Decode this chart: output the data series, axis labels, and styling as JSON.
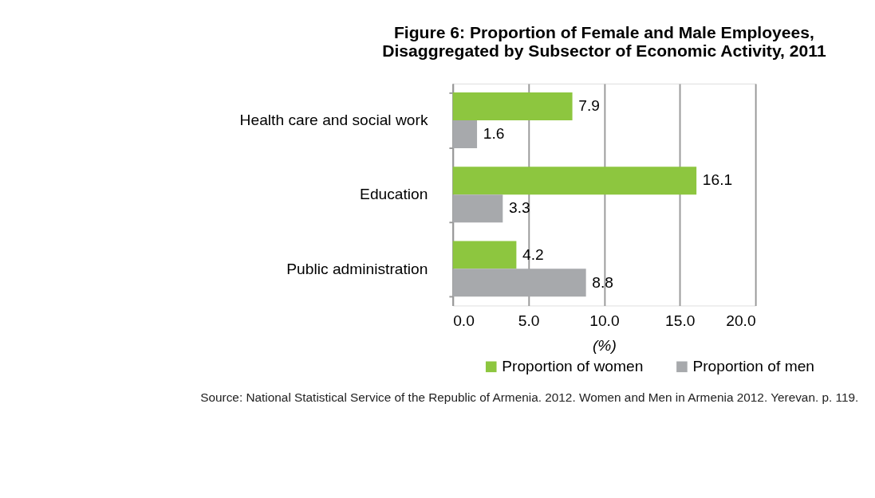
{
  "chart_data": {
    "type": "bar",
    "orientation": "horizontal",
    "title": "Figure 6:    Proportion of Female and Male Employees, Disaggregated by Subsector of Economic Activity, 2011",
    "categories": [
      "Health care and social work",
      "Education",
      "Public administration"
    ],
    "series": [
      {
        "name": "Proportion of women",
        "color": "#8dc63f",
        "values": [
          7.9,
          16.1,
          4.2
        ]
      },
      {
        "name": "Proportion of men",
        "color": "#a7a9ac",
        "values": [
          1.6,
          3.3,
          8.8
        ]
      }
    ],
    "xlabel": "(%)",
    "xlim": [
      0,
      20
    ],
    "xticks": [
      {
        "value": 0,
        "label": "0.0"
      },
      {
        "value": 5,
        "label": "5.0"
      },
      {
        "value": 10,
        "label": "10.0"
      },
      {
        "value": 15,
        "label": "15.0"
      },
      {
        "value": 20,
        "label": "20.0"
      }
    ],
    "grid": "x",
    "legend": "bottom",
    "data_labels": true,
    "annotations": [
      "Source: National Statistical Service of the Republic of Armenia. 2012. Women and Men in Armenia 2012. Yerevan. p. 119."
    ]
  }
}
